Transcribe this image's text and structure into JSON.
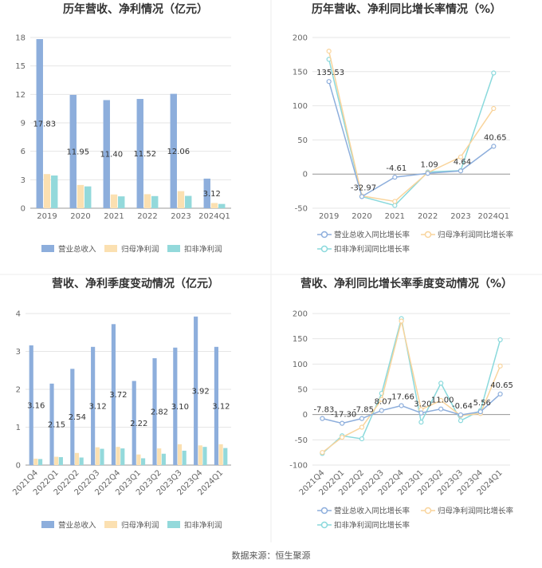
{
  "source": "数据来源：恒生聚源",
  "colors": {
    "revenue": "#8DAEDC",
    "net_profit": "#FBE0B1",
    "deducted_profit": "#93D9DB",
    "line_revenue": "#8DAEDC",
    "line_net_profit": "#F9D49C",
    "line_deducted": "#8AD9DC",
    "grid": "#E6E6E6",
    "axis": "#999999"
  },
  "chart_data": [
    {
      "type": "bar",
      "title": "历年营收、净利情况（亿元）",
      "categories": [
        "2019",
        "2020",
        "2021",
        "2022",
        "2023",
        "2024Q1"
      ],
      "ylim": [
        0,
        18
      ],
      "yticks": [
        0,
        3,
        6,
        9,
        12,
        15,
        18
      ],
      "series": [
        {
          "name": "营业总收入",
          "values": [
            17.83,
            11.95,
            11.4,
            11.52,
            12.06,
            3.12
          ],
          "labels": [
            "17.83",
            "11.95",
            "11.40",
            "11.52",
            "12.06",
            "3.12"
          ]
        },
        {
          "name": "归母净利润",
          "values": [
            3.6,
            2.45,
            1.45,
            1.48,
            1.8,
            0.55
          ]
        },
        {
          "name": "扣非净利润",
          "values": [
            3.45,
            2.3,
            1.25,
            1.28,
            1.3,
            0.45
          ]
        }
      ],
      "legend": "bottom",
      "grid": true
    },
    {
      "type": "line",
      "title": "历年营收、净利同比增长率情况（%）",
      "categories": [
        "2019",
        "2020",
        "2021",
        "2022",
        "2023",
        "2024Q1"
      ],
      "ylim": [
        -50,
        200
      ],
      "yticks": [
        -50,
        0,
        50,
        100,
        150,
        200
      ],
      "series": [
        {
          "name": "营业总收入同比增长率",
          "values": [
            135.53,
            -32.97,
            -4.61,
            1.09,
            4.64,
            40.65
          ],
          "labels": [
            "135.53",
            "-32.97",
            "-4.61",
            "1.09",
            "4.64",
            "40.65"
          ]
        },
        {
          "name": "归母净利润同比增长率",
          "values": [
            180,
            -32,
            -40,
            2,
            25,
            96
          ]
        },
        {
          "name": "扣非净利润同比增长率",
          "values": [
            168,
            -33,
            -46,
            3,
            5,
            148
          ]
        }
      ],
      "legend": "bottom",
      "grid": true
    },
    {
      "type": "bar",
      "title": "营收、净利季度变动情况（亿元）",
      "categories": [
        "2021Q4",
        "2022Q1",
        "2022Q2",
        "2022Q3",
        "2022Q4",
        "2023Q1",
        "2023Q2",
        "2023Q3",
        "2023Q4",
        "2024Q1"
      ],
      "ylim": [
        0,
        4
      ],
      "yticks": [
        0,
        1,
        2,
        3,
        4
      ],
      "series": [
        {
          "name": "营业总收入",
          "values": [
            3.16,
            2.15,
            2.54,
            3.12,
            3.72,
            2.22,
            2.82,
            3.1,
            3.92,
            3.12
          ],
          "labels": [
            "3.16",
            "2.15",
            "2.54",
            "3.12",
            "3.72",
            "2.22",
            "2.82",
            "3.10",
            "3.92",
            "3.12"
          ]
        },
        {
          "name": "归母净利润",
          "values": [
            0.17,
            0.22,
            0.32,
            0.47,
            0.48,
            0.28,
            0.44,
            0.55,
            0.52,
            0.55
          ]
        },
        {
          "name": "扣非净利润",
          "values": [
            0.16,
            0.21,
            0.2,
            0.43,
            0.44,
            0.18,
            0.3,
            0.38,
            0.48,
            0.45
          ]
        }
      ],
      "legend": "bottom",
      "grid": true
    },
    {
      "type": "line",
      "title": "营收、净利同比增长率季度变动情况（%）",
      "categories": [
        "2021Q4",
        "2022Q1",
        "2022Q2",
        "2022Q3",
        "2022Q4",
        "2023Q1",
        "2023Q2",
        "2023Q3",
        "2023Q4",
        "2024Q1"
      ],
      "ylim": [
        -100,
        200
      ],
      "yticks": [
        -100,
        -50,
        0,
        50,
        100,
        150,
        200
      ],
      "series": [
        {
          "name": "营业总收入同比增长率",
          "values": [
            -7.83,
            -17.3,
            -7.85,
            8.07,
            17.66,
            3.2,
            11.0,
            -0.64,
            5.56,
            40.65
          ],
          "labels": [
            "-7.83",
            "-17.30",
            "-7.85",
            "8.07",
            "17.66",
            "3.20",
            "11.00",
            "-0.64",
            "5.56",
            "40.65"
          ]
        },
        {
          "name": "归母净利润同比增长率",
          "values": [
            -75,
            -45,
            -25,
            30,
            185,
            10,
            28,
            -2,
            2,
            96
          ]
        },
        {
          "name": "扣非净利润同比增长率",
          "values": [
            -77,
            -42,
            -48,
            42,
            190,
            -15,
            62,
            -12,
            8,
            148
          ]
        }
      ],
      "legend": "bottom",
      "grid": true
    }
  ]
}
